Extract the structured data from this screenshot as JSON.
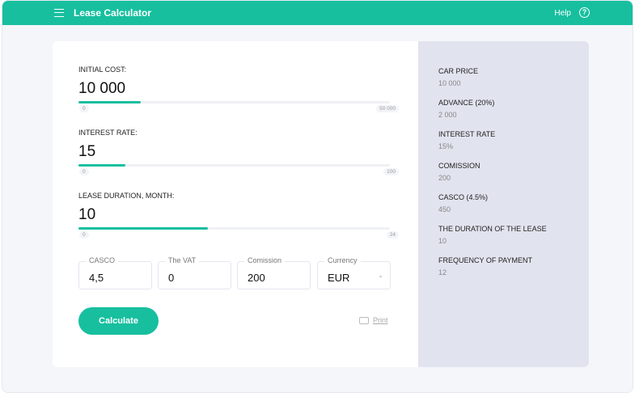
{
  "header": {
    "title": "Lease Calculator",
    "help_label": "Help",
    "help_icon": "?"
  },
  "sliders": [
    {
      "label": "INITIAL COST:",
      "value": "10 000",
      "numeric": 10000,
      "min": "0",
      "max": "50 000",
      "min_value": 0,
      "max_value": 50000
    },
    {
      "label": "INTEREST RATE:",
      "value": "15",
      "numeric": 15,
      "min": "0",
      "max": "100",
      "min_value": 0,
      "max_value": 100
    },
    {
      "label": "LEASE DURATION, MONTH:",
      "value": "10",
      "numeric": 10,
      "min": "0",
      "max": "24",
      "min_value": 0,
      "max_value": 24
    }
  ],
  "fields": [
    {
      "label": "CASCO",
      "value": "4,5"
    },
    {
      "label": "The VAT",
      "value": "0"
    },
    {
      "label": "Comission",
      "value": "200"
    },
    {
      "label": "Currency",
      "value": "EUR"
    }
  ],
  "calculate_label": "Calculate",
  "print_label": "Print",
  "summary": [
    {
      "label": "CAR PRICE",
      "value": "10 000"
    },
    {
      "label": "ADVANCE (20%)",
      "value": "2 000"
    },
    {
      "label": "INTEREST RATE",
      "value": "15%"
    },
    {
      "label": "COMISSION",
      "value": "200"
    },
    {
      "label": "CASCO (4.5%)",
      "value": "450"
    },
    {
      "label": "THE DURATION OF THE LEASE",
      "value": "10"
    },
    {
      "label": "FREQUENCY OF PAYMENT",
      "value": "12"
    }
  ],
  "colors": {
    "accent": "#17bf9f",
    "summary_bg": "#e1e3ee"
  }
}
